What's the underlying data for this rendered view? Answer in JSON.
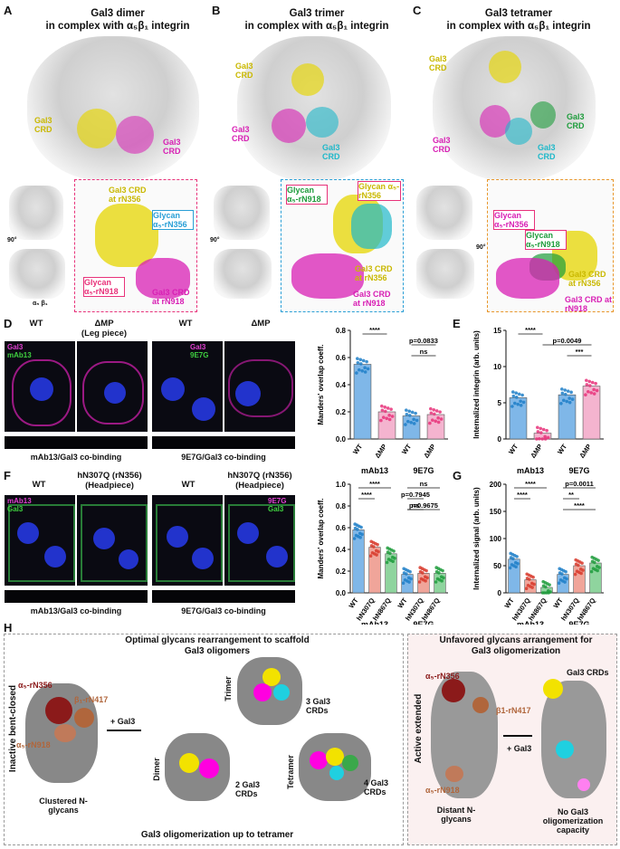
{
  "colors": {
    "magenta": "#d81fb4",
    "yellow": "#e6d600",
    "cyan": "#1fb8c9",
    "green": "#1e9c3c",
    "pink": "#e8327a",
    "blue": "#2a9fd6",
    "orange": "#e8962a",
    "darkred": "#8b1a1a",
    "brown": "#b0663c"
  },
  "panels": {
    "A": {
      "letter": "A",
      "title1": "Gal3 dimer",
      "title2": "in complex with α₅β₁ integrin",
      "crd1": "Gal3 CRD",
      "crd2": "Gal3 CRD",
      "crd_mag": "Gal3 CRD",
      "zoom_crd1": "Gal3 CRD at rN356",
      "zoom_glycan1": "Glycan α₅-rN356",
      "zoom_glycan2": "Glycan α₅-rN918",
      "zoom_crd2": "Gal3 CRD at rN918",
      "rot": "90°",
      "ab": "α₅  β₁"
    },
    "B": {
      "letter": "B",
      "title1": "Gal3 trimer",
      "title2": "in complex with α₅β₁ integrin",
      "crd_y": "Gal3 CRD",
      "crd_m": "Gal3 CRD",
      "crd_c": "Gal3 CRD",
      "zoom_glycan1": "Glycan α₅-rN918",
      "zoom_glycan2": "Glycan α₅-rN356",
      "zoom_crd1": "Gal3 CRD at rN356",
      "zoom_crd2": "Gal3 CRD at rN918",
      "rot": "90°"
    },
    "C": {
      "letter": "C",
      "title1": "Gal3 tetramer",
      "title2": "in complex with α₅β₁ integrin",
      "crd_y": "Gal3 CRD",
      "crd_g": "Gal3 CRD",
      "crd_m": "Gal3 CRD",
      "crd_c": "Gal3 CRD",
      "zoom_glycan1": "Glycan α₅-rN356",
      "zoom_glycan2": "Glycan α₅-rN918",
      "zoom_crd1": "Gal3 CRD at rN356",
      "zoom_crd2": "Gal3 CRD at rN918",
      "rot": "90°"
    },
    "D": {
      "letter": "D",
      "wt": "WT",
      "dmp": "ΔMP",
      "dmp_sub": "(Leg piece)",
      "wt2": "WT",
      "dmp2": "ΔMP",
      "ch1": "Gal3",
      "ch2": "mAb13",
      "ch3": "Gal3",
      "ch4": "9E7G",
      "cap1": "mAb13/Gal3 co-binding",
      "cap2": "9E7G/Gal3 co-binding"
    },
    "F": {
      "letter": "F",
      "wt": "WT",
      "mut": "hN307Q (rN356)",
      "mut_sub": "(Headpiece)",
      "wt2": "WT",
      "mut2": "hN307Q (rN356)",
      "mut2_sub": "(Headpiece)",
      "ch1": "mAb13",
      "ch2": "Gal3",
      "ch3": "9E7G",
      "ch4": "Gal3",
      "cap1": "mAb13/Gal3 co-binding",
      "cap2": "9E7G/Gal3 co-binding"
    },
    "H": {
      "letter": "H",
      "left_title1": "Optimal glycans rearrangement to scaffold",
      "left_title2": "Gal3 oligomers",
      "right_title1": "Unfavored glycans arrangement for",
      "right_title2": "Gal3 oligomerization",
      "side_left": "Inactive bent-closed",
      "side_right": "Active extended",
      "g1": "α₅-rN356",
      "g2": "β₁-rN417",
      "g3": "α₅-rN918",
      "clustered": "Clustered N-glycans",
      "plus1": "+ Gal3",
      "dimer": "Dimer",
      "dimer_crd": "2 Gal3 CRDs",
      "trimer": "Trimer",
      "trimer_crd": "3 Gal3 CRDs",
      "tetramer": "Tetramer",
      "tetramer_crd": "4 Gal3 CRDs",
      "footer": "Gal3 oligomerization up to tetramer",
      "rg1": "α₅-rN356",
      "rg2": "β1-rN417",
      "rg3": "α₅-rN918",
      "distant": "Distant N-glycans",
      "plus2": "+ Gal3",
      "rcrds": "Gal3 CRDs",
      "nocap": "No Gal3 oligomerization capacity"
    }
  },
  "chart_data": [
    {
      "id": "D",
      "type": "bar",
      "ylabel": "Manders' overlap coeff.",
      "ylim": [
        0,
        0.8
      ],
      "yticks": [
        "0.0",
        "0.2",
        "0.4",
        "0.6",
        "0.8"
      ],
      "categories": [
        "WT",
        "ΔMP",
        "WT",
        "ΔMP"
      ],
      "groups": [
        "mAb13",
        "9E7G"
      ],
      "values": [
        0.55,
        0.2,
        0.17,
        0.18
      ],
      "annotations": [
        {
          "pair": [
            0,
            1
          ],
          "text": "****"
        },
        {
          "pair": [
            2,
            3
          ],
          "text": "p=0.0833"
        },
        {
          "pair": [
            2,
            3
          ],
          "text": "ns"
        }
      ]
    },
    {
      "id": "E",
      "type": "bar",
      "ylabel": "Internalized integrin (arb. units)",
      "ylim": [
        0,
        15
      ],
      "yticks": [
        "0",
        "5",
        "10",
        "15"
      ],
      "categories": [
        "WT",
        "ΔMP",
        "WT",
        "ΔMP"
      ],
      "groups": [
        "mAb13",
        "9E7G"
      ],
      "values": [
        5.7,
        0.8,
        6.1,
        7.3
      ],
      "annotations": [
        {
          "pair": [
            0,
            1
          ],
          "text": "****"
        },
        {
          "pair": [
            1,
            3
          ],
          "text": "p=0.0049"
        },
        {
          "pair": [
            2,
            3
          ],
          "text": "***"
        }
      ]
    },
    {
      "id": "F",
      "type": "bar",
      "ylabel": "Manders' overlap coeff.",
      "ylim": [
        0,
        1.0
      ],
      "yticks": [
        "0.0",
        "0.2",
        "0.4",
        "0.6",
        "0.8",
        "1.0"
      ],
      "categories": [
        "WT",
        "hN307Q",
        "hN867Q",
        "WT",
        "hN307Q",
        "hN867Q"
      ],
      "groups": [
        "mAb13",
        "9E7G"
      ],
      "values": [
        0.58,
        0.42,
        0.36,
        0.17,
        0.18,
        0.18
      ],
      "annotations": [
        {
          "pair": [
            0,
            2
          ],
          "text": "****"
        },
        {
          "pair": [
            0,
            1
          ],
          "text": "****"
        },
        {
          "pair": [
            3,
            5
          ],
          "text": "p=0.9675"
        },
        {
          "pair": [
            3,
            5
          ],
          "text": "ns"
        },
        {
          "pair": [
            3,
            4
          ],
          "text": "p=0.7945"
        },
        {
          "pair": [
            3,
            4
          ],
          "text": "ns"
        }
      ]
    },
    {
      "id": "G",
      "type": "bar",
      "ylabel": "Internalized signal (arb. units)",
      "ylim": [
        0,
        200
      ],
      "yticks": [
        "0",
        "50",
        "100",
        "150",
        "200"
      ],
      "categories": [
        "WT",
        "hN307Q",
        "hN867Q",
        "WT",
        "hN307Q",
        "hN867Q"
      ],
      "groups": [
        "mAb13",
        "9E7G"
      ],
      "values": [
        62,
        24,
        10,
        34,
        50,
        55
      ],
      "annotations": [
        {
          "pair": [
            0,
            2
          ],
          "text": "****"
        },
        {
          "pair": [
            0,
            1
          ],
          "text": "****"
        },
        {
          "pair": [
            3,
            5
          ],
          "text": "****"
        },
        {
          "pair": [
            3,
            5
          ],
          "text": "p=0.0011"
        },
        {
          "pair": [
            3,
            4
          ],
          "text": "**"
        }
      ]
    }
  ]
}
